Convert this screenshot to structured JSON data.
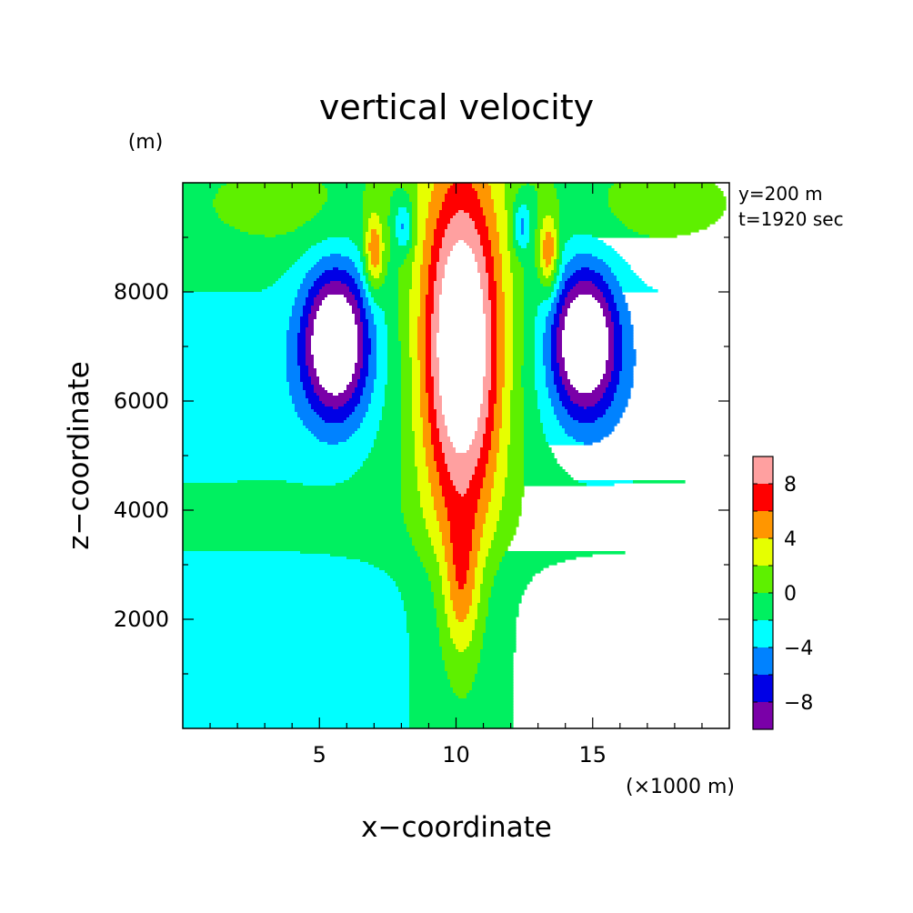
{
  "chart_data": {
    "type": "contour",
    "title": "vertical velocity",
    "xlabel": "x−coordinate",
    "ylabel": "z−coordinate",
    "x_unit": "(×1000 m)",
    "y_unit": "(m)",
    "xlim": [
      0,
      20
    ],
    "ylim": [
      0,
      10000
    ],
    "x_ticks": [
      5,
      10,
      15
    ],
    "y_ticks": [
      2000,
      4000,
      6000,
      8000
    ],
    "annotations": [
      "y=200 m",
      "t=1920 sec"
    ],
    "colorbar": {
      "levels": [
        -10,
        -8,
        -6,
        -4,
        -2,
        0,
        2,
        4,
        6,
        8,
        10
      ],
      "tick_labels": [
        "8",
        "4",
        "0",
        "−4",
        "−8"
      ],
      "tick_values": [
        8,
        4,
        0,
        -4,
        -8
      ],
      "colors": [
        "#7a00a8",
        "#0000e6",
        "#0082ff",
        "#00ffff",
        "#00f060",
        "#5ef000",
        "#e6ff00",
        "#ff9600",
        "#ff0000",
        "#ffa0a0"
      ],
      "over_color": "#ffffff",
      "under_color": "#ffffff"
    },
    "features": [
      {
        "kind": "updraft_core",
        "x_center": 10.2,
        "z_base": 2000,
        "z_top": 9700,
        "max_value_above": 10
      },
      {
        "kind": "downdraft_cell",
        "side": "left",
        "x_center": 5.6,
        "z_center": 7000,
        "min_value_below": -10
      },
      {
        "kind": "downdraft_cell",
        "side": "right",
        "x_center": 14.7,
        "z_center": 7000,
        "min_value_below": -10
      }
    ]
  }
}
